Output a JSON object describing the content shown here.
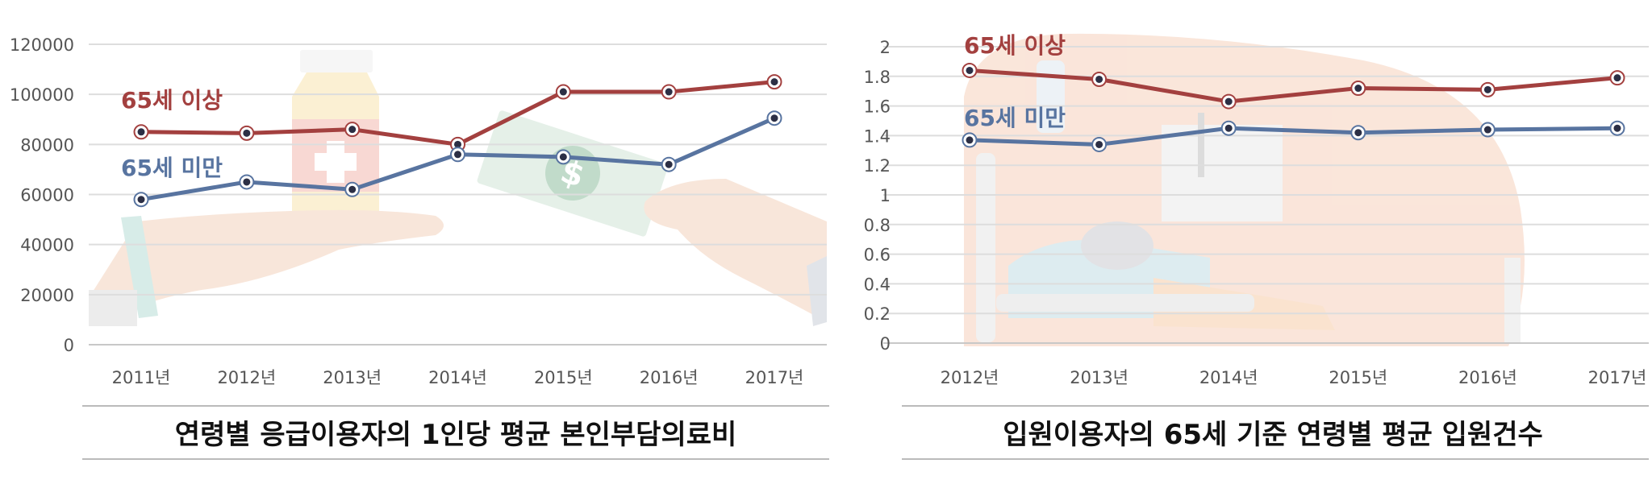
{
  "charts": [
    {
      "title": "연령별 응급이용자의 1인당 평균 본인부담의료비",
      "chart_data": {
        "type": "line",
        "categories": [
          "2011년",
          "2012년",
          "2013년",
          "2014년",
          "2015년",
          "2016년",
          "2017년"
        ],
        "yticks": [
          "0",
          "20000",
          "40000",
          "60000",
          "80000",
          "100000",
          "120000"
        ],
        "ylim": [
          0,
          120000
        ],
        "grid": true,
        "series": [
          {
            "name": "65세 이상",
            "color": "#a3403f",
            "values": [
              85000,
              84500,
              86000,
              80000,
              101000,
              101000,
              105000
            ]
          },
          {
            "name": "65세 미만",
            "color": "#5874a0",
            "values": [
              58000,
              65000,
              62000,
              76000,
              75000,
              72000,
              90500
            ]
          }
        ]
      }
    },
    {
      "title": "입원이용자의 65세 기준 연령별 평균 입원건수",
      "chart_data": {
        "type": "line",
        "categories": [
          "2012년",
          "2013년",
          "2014년",
          "2015년",
          "2016년",
          "2017년"
        ],
        "yticks": [
          "0",
          "0.2",
          "0.4",
          "0.6",
          "0.8",
          "1",
          "1.2",
          "1.4",
          "1.6",
          "1.8",
          "2"
        ],
        "ylim": [
          0,
          2
        ],
        "grid": true,
        "series": [
          {
            "name": "65세 이상",
            "color": "#a3403f",
            "values": [
              1.84,
              1.78,
              1.63,
              1.72,
              1.71,
              1.79
            ]
          },
          {
            "name": "65세 미만",
            "color": "#5874a0",
            "values": [
              1.37,
              1.34,
              1.45,
              1.42,
              1.44,
              1.45
            ]
          }
        ]
      }
    }
  ]
}
